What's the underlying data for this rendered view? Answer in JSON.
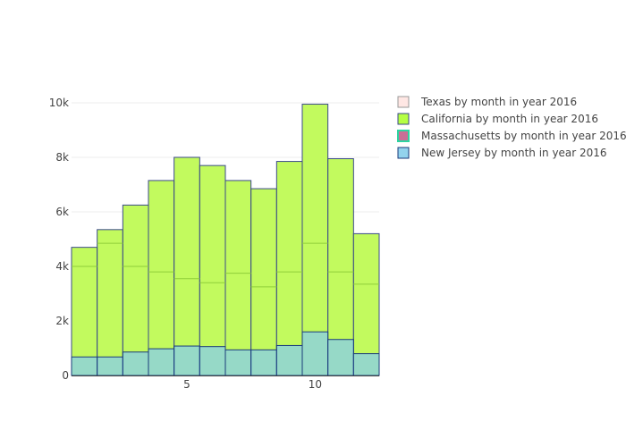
{
  "chart_data": {
    "type": "bar",
    "barmode": "overlay",
    "x": [
      1,
      2,
      3,
      4,
      5,
      6,
      7,
      8,
      9,
      10,
      11,
      12
    ],
    "series": [
      {
        "name": "Texas by month in year 2016",
        "values": [
          4700,
          5350,
          6250,
          7150,
          8000,
          7700,
          7150,
          6850,
          7850,
          9950,
          7950,
          5200
        ],
        "color": "#ffe4e1",
        "line_color": "#8a5a5a"
      },
      {
        "name": "California by month in year 2016",
        "values": [
          4700,
          5350,
          6250,
          7150,
          8000,
          7700,
          7150,
          6850,
          7850,
          9950,
          7950,
          5200
        ],
        "color": "#adff2f",
        "line_color": "#3b4a8a"
      },
      {
        "name": "Massachusetts by month in year 2016",
        "values": [
          4000,
          4850,
          4000,
          3800,
          3550,
          3400,
          3750,
          3250,
          3800,
          4850,
          3800,
          3350
        ],
        "color": "#b0306a",
        "line_color": "#2dd4a0"
      },
      {
        "name": "New Jersey by month in year 2016",
        "values": [
          680,
          680,
          860,
          980,
          1080,
          1060,
          940,
          940,
          1100,
          1600,
          1320,
          800
        ],
        "color": "#87ceeb",
        "line_color": "#1a3a7a"
      }
    ],
    "x_ticks": [
      {
        "value": 5,
        "label": "5"
      },
      {
        "value": 10,
        "label": "10"
      }
    ],
    "y_ticks": [
      {
        "value": 0,
        "label": "0"
      },
      {
        "value": 2000,
        "label": "2k"
      },
      {
        "value": 4000,
        "label": "4k"
      },
      {
        "value": 6000,
        "label": "6k"
      },
      {
        "value": 8000,
        "label": "8k"
      },
      {
        "value": 10000,
        "label": "10k"
      }
    ],
    "xlim": [
      0.5,
      12.5
    ],
    "ylim": [
      0,
      10000
    ],
    "title": "",
    "xlabel": "",
    "ylabel": "",
    "grid": true,
    "legend_position": "top-right"
  }
}
